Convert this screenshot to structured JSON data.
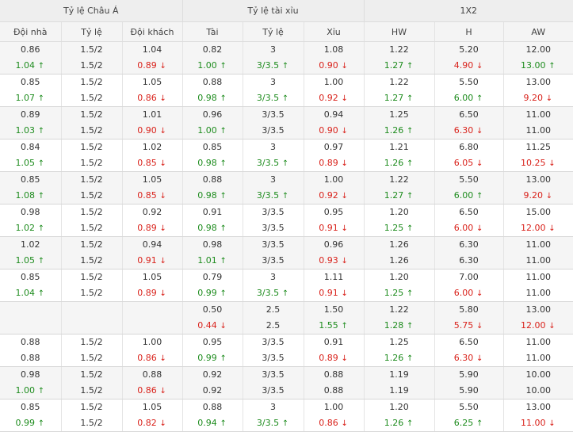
{
  "header": {
    "groups": [
      "Tỷ lệ Châu Á",
      "Tỷ lệ tài xỉu",
      "1X2"
    ],
    "columns": [
      "Đội nhà",
      "Tỷ lệ",
      "Đội khách",
      "Tài",
      "Tỷ lệ",
      "Xỉu",
      "HW",
      "H",
      "AW"
    ]
  },
  "arrows": {
    "up": "↑",
    "down": "↓"
  },
  "colors": {
    "up": "#1e8c1e",
    "down": "#d9221b"
  },
  "rows": [
    [
      [
        "0.86",
        "1.04",
        "up"
      ],
      [
        "1.5/2",
        "1.5/2",
        ""
      ],
      [
        "1.04",
        "0.89",
        "down"
      ],
      [
        "0.82",
        "1.00",
        "up"
      ],
      [
        "3",
        "3/3.5",
        "up"
      ],
      [
        "1.08",
        "0.90",
        "down"
      ],
      [
        "1.22",
        "1.27",
        "up"
      ],
      [
        "5.20",
        "4.90",
        "down"
      ],
      [
        "12.00",
        "13.00",
        "up"
      ]
    ],
    [
      [
        "0.85",
        "1.07",
        "up"
      ],
      [
        "1.5/2",
        "1.5/2",
        ""
      ],
      [
        "1.05",
        "0.86",
        "down"
      ],
      [
        "0.88",
        "0.98",
        "up"
      ],
      [
        "3",
        "3/3.5",
        "up"
      ],
      [
        "1.00",
        "0.92",
        "down"
      ],
      [
        "1.22",
        "1.27",
        "up"
      ],
      [
        "5.50",
        "6.00",
        "up"
      ],
      [
        "13.00",
        "9.20",
        "down"
      ]
    ],
    [
      [
        "0.89",
        "1.03",
        "up"
      ],
      [
        "1.5/2",
        "1.5/2",
        ""
      ],
      [
        "1.01",
        "0.90",
        "down"
      ],
      [
        "0.96",
        "1.00",
        "up"
      ],
      [
        "3/3.5",
        "3/3.5",
        ""
      ],
      [
        "0.94",
        "0.90",
        "down"
      ],
      [
        "1.25",
        "1.26",
        "up"
      ],
      [
        "6.50",
        "6.30",
        "down"
      ],
      [
        "11.00",
        "11.00",
        ""
      ]
    ],
    [
      [
        "0.84",
        "1.05",
        "up"
      ],
      [
        "1.5/2",
        "1.5/2",
        ""
      ],
      [
        "1.02",
        "0.85",
        "down"
      ],
      [
        "0.85",
        "0.98",
        "up"
      ],
      [
        "3",
        "3/3.5",
        "up"
      ],
      [
        "0.97",
        "0.89",
        "down"
      ],
      [
        "1.21",
        "1.26",
        "up"
      ],
      [
        "6.80",
        "6.05",
        "down"
      ],
      [
        "11.25",
        "10.25",
        "down"
      ]
    ],
    [
      [
        "0.85",
        "1.08",
        "up"
      ],
      [
        "1.5/2",
        "1.5/2",
        ""
      ],
      [
        "1.05",
        "0.85",
        "down"
      ],
      [
        "0.88",
        "0.98",
        "up"
      ],
      [
        "3",
        "3/3.5",
        "up"
      ],
      [
        "1.00",
        "0.92",
        "down"
      ],
      [
        "1.22",
        "1.27",
        "up"
      ],
      [
        "5.50",
        "6.00",
        "up"
      ],
      [
        "13.00",
        "9.20",
        "down"
      ]
    ],
    [
      [
        "0.98",
        "1.02",
        "up"
      ],
      [
        "1.5/2",
        "1.5/2",
        ""
      ],
      [
        "0.92",
        "0.89",
        "down"
      ],
      [
        "0.91",
        "0.98",
        "up"
      ],
      [
        "3/3.5",
        "3/3.5",
        ""
      ],
      [
        "0.95",
        "0.91",
        "down"
      ],
      [
        "1.20",
        "1.25",
        "up"
      ],
      [
        "6.50",
        "6.00",
        "down"
      ],
      [
        "15.00",
        "12.00",
        "down"
      ]
    ],
    [
      [
        "1.02",
        "1.05",
        "up"
      ],
      [
        "1.5/2",
        "1.5/2",
        ""
      ],
      [
        "0.94",
        "0.91",
        "down"
      ],
      [
        "0.98",
        "1.01",
        "up"
      ],
      [
        "3/3.5",
        "3/3.5",
        ""
      ],
      [
        "0.96",
        "0.93",
        "down"
      ],
      [
        "1.26",
        "1.26",
        ""
      ],
      [
        "6.30",
        "6.30",
        ""
      ],
      [
        "11.00",
        "11.00",
        ""
      ]
    ],
    [
      [
        "0.85",
        "1.04",
        "up"
      ],
      [
        "1.5/2",
        "1.5/2",
        ""
      ],
      [
        "1.05",
        "0.89",
        "down"
      ],
      [
        "0.79",
        "0.99",
        "up"
      ],
      [
        "3",
        "3/3.5",
        "up"
      ],
      [
        "1.11",
        "0.91",
        "down"
      ],
      [
        "1.20",
        "1.25",
        "up"
      ],
      [
        "7.00",
        "6.00",
        "down"
      ],
      [
        "11.00",
        "11.00",
        ""
      ]
    ],
    [
      [
        "",
        "",
        ""
      ],
      [
        "",
        "",
        ""
      ],
      [
        "",
        "",
        ""
      ],
      [
        "0.50",
        "0.44",
        "down"
      ],
      [
        "2.5",
        "2.5",
        ""
      ],
      [
        "1.50",
        "1.55",
        "up"
      ],
      [
        "1.22",
        "1.28",
        "up"
      ],
      [
        "5.80",
        "5.75",
        "down"
      ],
      [
        "13.00",
        "12.00",
        "down"
      ]
    ],
    [
      [
        "0.88",
        "0.88",
        ""
      ],
      [
        "1.5/2",
        "1.5/2",
        ""
      ],
      [
        "1.00",
        "0.86",
        "down"
      ],
      [
        "0.95",
        "0.99",
        "up"
      ],
      [
        "3/3.5",
        "3/3.5",
        ""
      ],
      [
        "0.91",
        "0.89",
        "down"
      ],
      [
        "1.25",
        "1.26",
        "up"
      ],
      [
        "6.50",
        "6.30",
        "down"
      ],
      [
        "11.00",
        "11.00",
        ""
      ]
    ],
    [
      [
        "0.98",
        "1.00",
        "up"
      ],
      [
        "1.5/2",
        "1.5/2",
        ""
      ],
      [
        "0.88",
        "0.86",
        "down"
      ],
      [
        "0.92",
        "0.92",
        ""
      ],
      [
        "3/3.5",
        "3/3.5",
        ""
      ],
      [
        "0.88",
        "0.88",
        ""
      ],
      [
        "1.19",
        "1.19",
        ""
      ],
      [
        "5.90",
        "5.90",
        ""
      ],
      [
        "10.00",
        "10.00",
        ""
      ]
    ],
    [
      [
        "0.85",
        "0.99",
        "up"
      ],
      [
        "1.5/2",
        "1.5/2",
        ""
      ],
      [
        "1.05",
        "0.82",
        "down"
      ],
      [
        "0.88",
        "0.94",
        "up"
      ],
      [
        "3",
        "3/3.5",
        "up"
      ],
      [
        "1.00",
        "0.86",
        "down"
      ],
      [
        "1.20",
        "1.26",
        "up"
      ],
      [
        "5.50",
        "6.25",
        "up"
      ],
      [
        "13.00",
        "11.00",
        "down"
      ]
    ]
  ]
}
